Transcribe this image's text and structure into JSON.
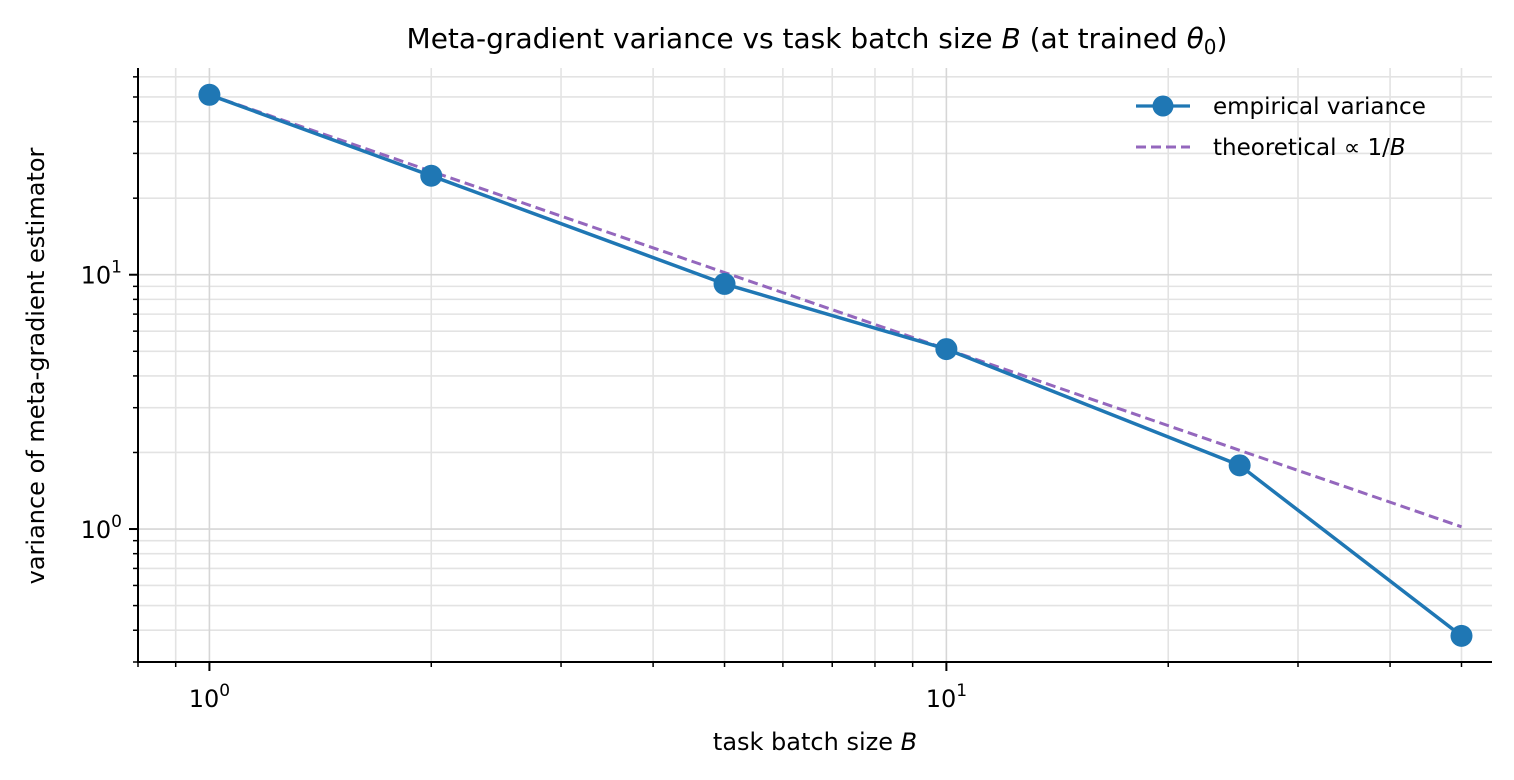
{
  "chart_data": {
    "type": "line",
    "title_prefix": "Meta-gradient variance vs task batch size ",
    "title_var": "B",
    "title_mid": " (at trained ",
    "title_theta": "θ",
    "title_sub": "0",
    "title_suffix": ")",
    "xlabel_prefix": "task batch size ",
    "xlabel_var": "B",
    "ylabel": "variance of meta-gradient estimator",
    "xscale": "log",
    "yscale": "log",
    "xlim": [
      0.8,
      55
    ],
    "ylim": [
      0.3,
      65
    ],
    "x_ticks": [
      {
        "base": "10",
        "exp": "0",
        "value": 1
      },
      {
        "base": "10",
        "exp": "1",
        "value": 10
      }
    ],
    "y_ticks": [
      {
        "base": "10",
        "exp": "0",
        "value": 1
      },
      {
        "base": "10",
        "exp": "1",
        "value": 10
      }
    ],
    "grid": true,
    "legend_position": "top-right",
    "series": [
      {
        "name": "empirical variance",
        "style": "solid-marker",
        "color": "#1f77b4",
        "x": [
          1,
          2,
          5,
          10,
          25,
          50
        ],
        "y": [
          51,
          24.5,
          9.2,
          5.1,
          1.78,
          0.38
        ]
      },
      {
        "name_prefix": "theoretical ∝ 1/",
        "name_var": "B",
        "style": "dashed",
        "color": "#9467bd",
        "x": [
          1,
          2,
          5,
          10,
          25,
          50
        ],
        "y": [
          51,
          25.5,
          10.2,
          5.1,
          2.04,
          1.02
        ]
      }
    ]
  }
}
